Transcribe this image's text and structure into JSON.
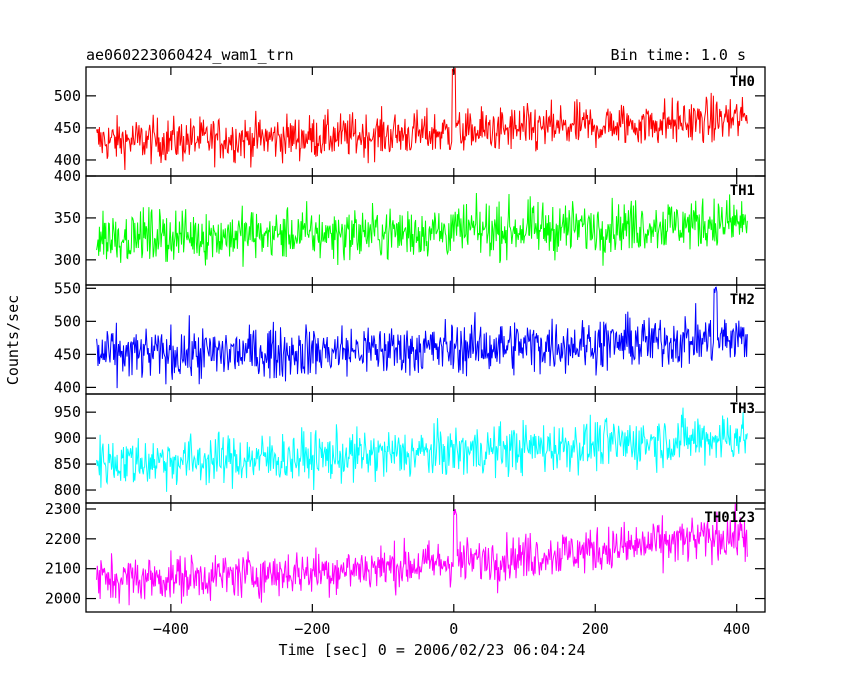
{
  "chart_data": {
    "type": "line",
    "title": "ae060223060424_wam1_trn",
    "bin_time": "Bin time: 1.0 s",
    "xlabel": "Time [sec] 0 = 2006/02/23 06:04:24",
    "ylabel": "Counts/sec",
    "xlim": [
      -520,
      440
    ],
    "x_ticks": [
      -400,
      -200,
      0,
      200,
      400
    ],
    "x_tick_labels": [
      "−400",
      "−200",
      "0",
      "200",
      "400"
    ],
    "x_range": [
      -505,
      415
    ],
    "grid": false,
    "panels": [
      {
        "name": "TH0",
        "color": "#ff0000",
        "ylim": [
          375,
          545
        ],
        "y_ticks": [
          400,
          450,
          500
        ],
        "mean_start": 430,
        "mean_end": 465,
        "noise": 25,
        "spikes": [
          {
            "x": 0,
            "y": 545
          }
        ]
      },
      {
        "name": "TH1",
        "color": "#00ff00",
        "ylim": [
          270,
          400
        ],
        "y_ticks": [
          300,
          350,
          400
        ],
        "mean_start": 328,
        "mean_end": 345,
        "noise": 22,
        "spikes": []
      },
      {
        "name": "TH2",
        "color": "#0000ff",
        "ylim": [
          390,
          555
        ],
        "y_ticks": [
          400,
          450,
          500,
          550
        ],
        "mean_start": 450,
        "mean_end": 475,
        "noise": 28,
        "spikes": [
          {
            "x": 370,
            "y": 555
          }
        ]
      },
      {
        "name": "TH3",
        "color": "#00ffff",
        "ylim": [
          775,
          985
        ],
        "y_ticks": [
          800,
          850,
          900,
          950
        ],
        "mean_start": 855,
        "mean_end": 905,
        "noise": 35,
        "spikes": []
      },
      {
        "name": "TH0123",
        "color": "#ff00ff",
        "ylim": [
          1955,
          2320
        ],
        "y_ticks": [
          2000,
          2100,
          2200,
          2300
        ],
        "mean_start": 2065,
        "mean_end": 2215,
        "noise": 55,
        "spikes": [
          {
            "x": 2,
            "y": 2305
          }
        ]
      }
    ]
  }
}
